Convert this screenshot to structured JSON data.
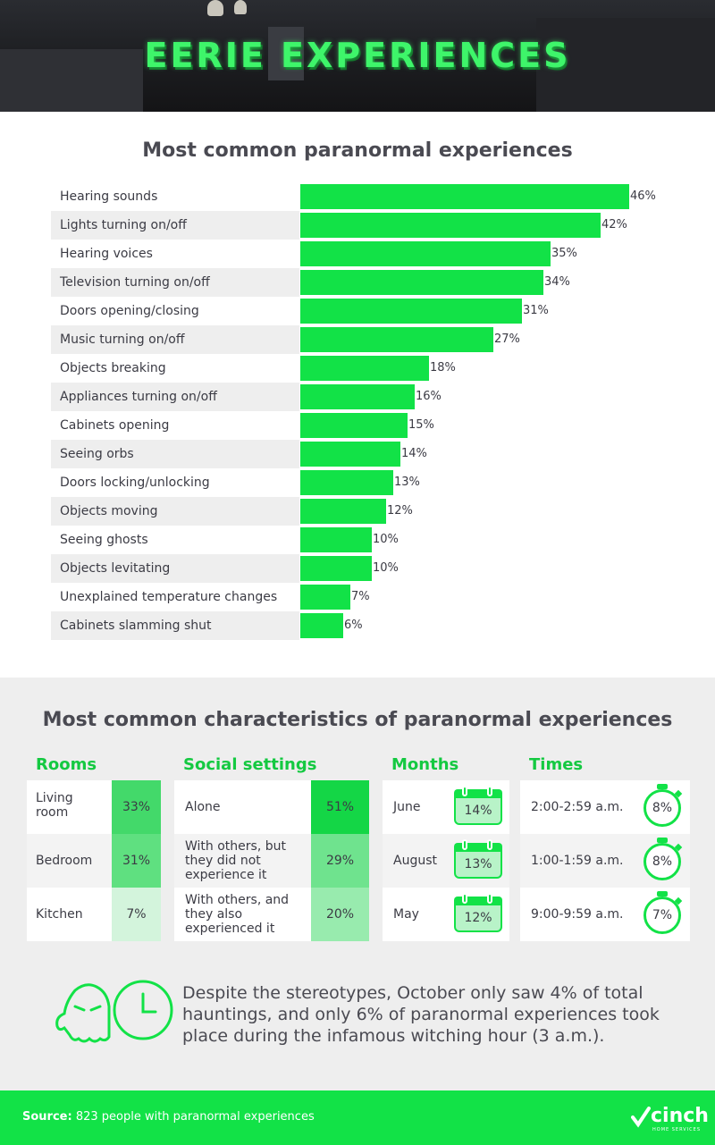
{
  "header": {
    "title": "EERIE EXPERIENCES"
  },
  "chart_data": {
    "type": "bar",
    "title": "Most common paranormal experiences",
    "orientation": "horizontal",
    "categories": [
      "Hearing sounds",
      "Lights turning on/off",
      "Hearing voices",
      "Television turning on/off",
      "Doors opening/closing",
      "Music turning on/off",
      "Objects breaking",
      "Appliances turning on/off",
      "Cabinets opening",
      "Seeing orbs",
      "Doors locking/unlocking",
      "Objects moving",
      "Seeing ghosts",
      "Objects levitating",
      "Unexplained temperature changes",
      "Cabinets slamming shut"
    ],
    "values": [
      46,
      42,
      35,
      34,
      31,
      27,
      18,
      16,
      15,
      14,
      13,
      12,
      10,
      10,
      7,
      6
    ],
    "value_labels": [
      "46%",
      "42%",
      "35%",
      "34%",
      "31%",
      "27%",
      "18%",
      "16%",
      "15%",
      "14%",
      "13%",
      "12%",
      "10%",
      "10%",
      "7%",
      "6%"
    ],
    "xlim": [
      0,
      46
    ],
    "bar_color": "#12e247"
  },
  "characteristics": {
    "title": "Most common characteristics of paranormal experiences",
    "rooms": {
      "heading": "Rooms",
      "rows": [
        {
          "label": "Living room",
          "value": "33%",
          "color": "#43d96a"
        },
        {
          "label": "Bedroom",
          "value": "31%",
          "color": "#5fe080"
        },
        {
          "label": "Kitchen",
          "value": "7%",
          "color": "#d3f4dc"
        }
      ]
    },
    "social": {
      "heading": "Social settings",
      "rows": [
        {
          "label": "Alone",
          "value": "51%",
          "color": "#14d646"
        },
        {
          "label": "With others, but they did not experience it",
          "value": "29%",
          "color": "#6fe38e"
        },
        {
          "label": "With others, and they also experienced it",
          "value": "20%",
          "color": "#98ebae"
        }
      ]
    },
    "months": {
      "heading": "Months",
      "rows": [
        {
          "label": "June",
          "value": "14%"
        },
        {
          "label": "August",
          "value": "13%"
        },
        {
          "label": "May",
          "value": "12%"
        }
      ]
    },
    "times": {
      "heading": "Times",
      "rows": [
        {
          "label": "2:00-2:59 a.m.",
          "value": "8%"
        },
        {
          "label": "1:00-1:59 a.m.",
          "value": "8%"
        },
        {
          "label": "9:00-9:59 a.m.",
          "value": "7%"
        }
      ]
    },
    "note": "Despite the stereotypes, October only saw 4% of total hauntings, and only 6% of paranormal experiences took place during the infamous witching hour (3 a.m.)."
  },
  "footer": {
    "source_label": "Source:",
    "source_text": " 823 people with paranormal experiences",
    "logo": "cinch",
    "logo_sub": "HOME SERVICES",
    "accent": "#12e247"
  }
}
